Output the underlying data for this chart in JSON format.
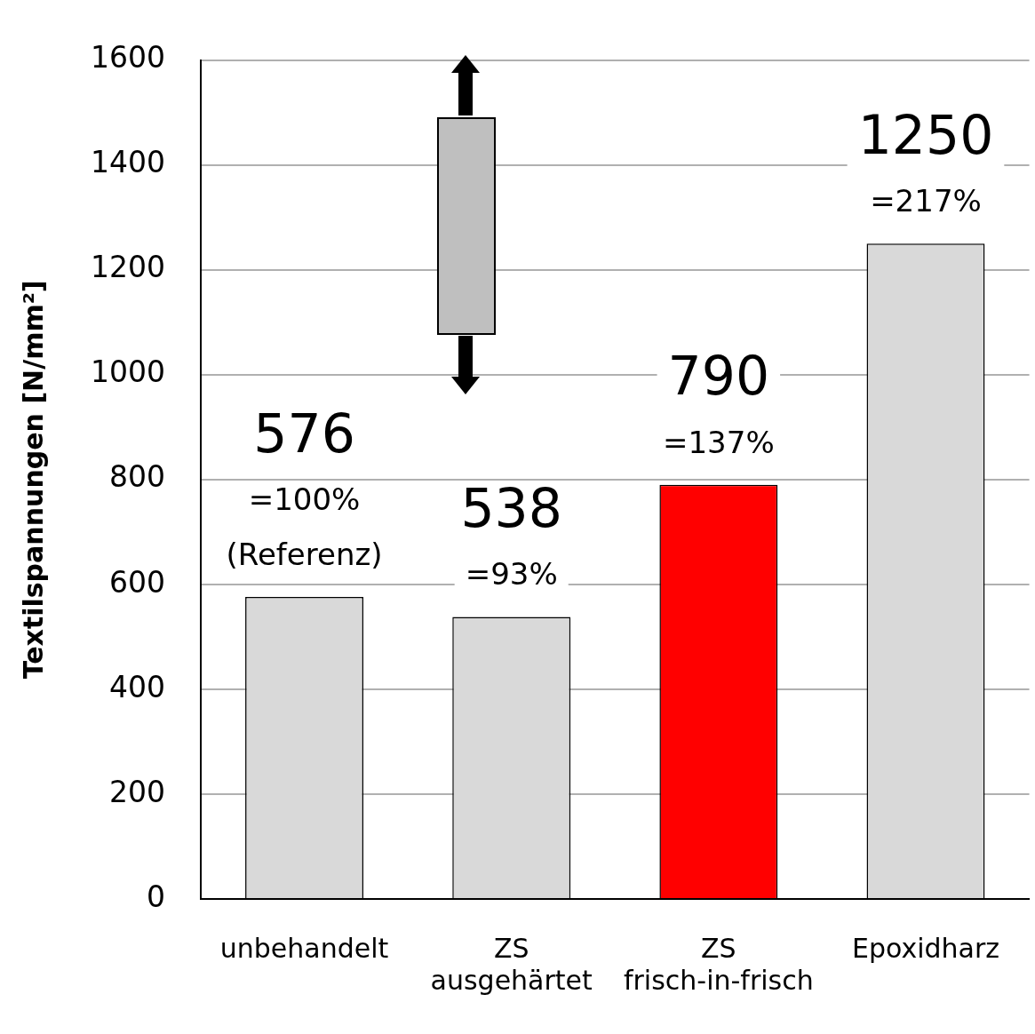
{
  "chart_data": {
    "type": "bar",
    "ylabel": "Textilspannungen [N/mm²]",
    "categories": [
      "unbehandelt",
      "ZS\nausgehärtet",
      "ZS\nfrisch-in-frisch",
      "Epoxidharz"
    ],
    "values": [
      576,
      538,
      790,
      1250
    ],
    "colors": [
      "#d9d9d9",
      "#d9d9d9",
      "#ff0000",
      "#d9d9d9"
    ],
    "ylim": [
      0,
      1600
    ],
    "yticks": [
      0,
      200,
      400,
      600,
      800,
      1000,
      1200,
      1400,
      1600
    ],
    "grid": "y",
    "data_labels": true,
    "annotations": [
      {
        "text": "=100%",
        "x": "unbehandelt",
        "y": 576
      },
      {
        "text": "(Referenz)",
        "x": "unbehandelt",
        "y": 576
      },
      {
        "text": "=93%",
        "x": "ZS\nausgehärtet",
        "y": 538
      },
      {
        "text": "=137%",
        "x": "ZS\nfrisch-in-frisch",
        "y": 790
      },
      {
        "text": "=217%",
        "x": "Epoxidharz",
        "y": 1250
      }
    ]
  }
}
